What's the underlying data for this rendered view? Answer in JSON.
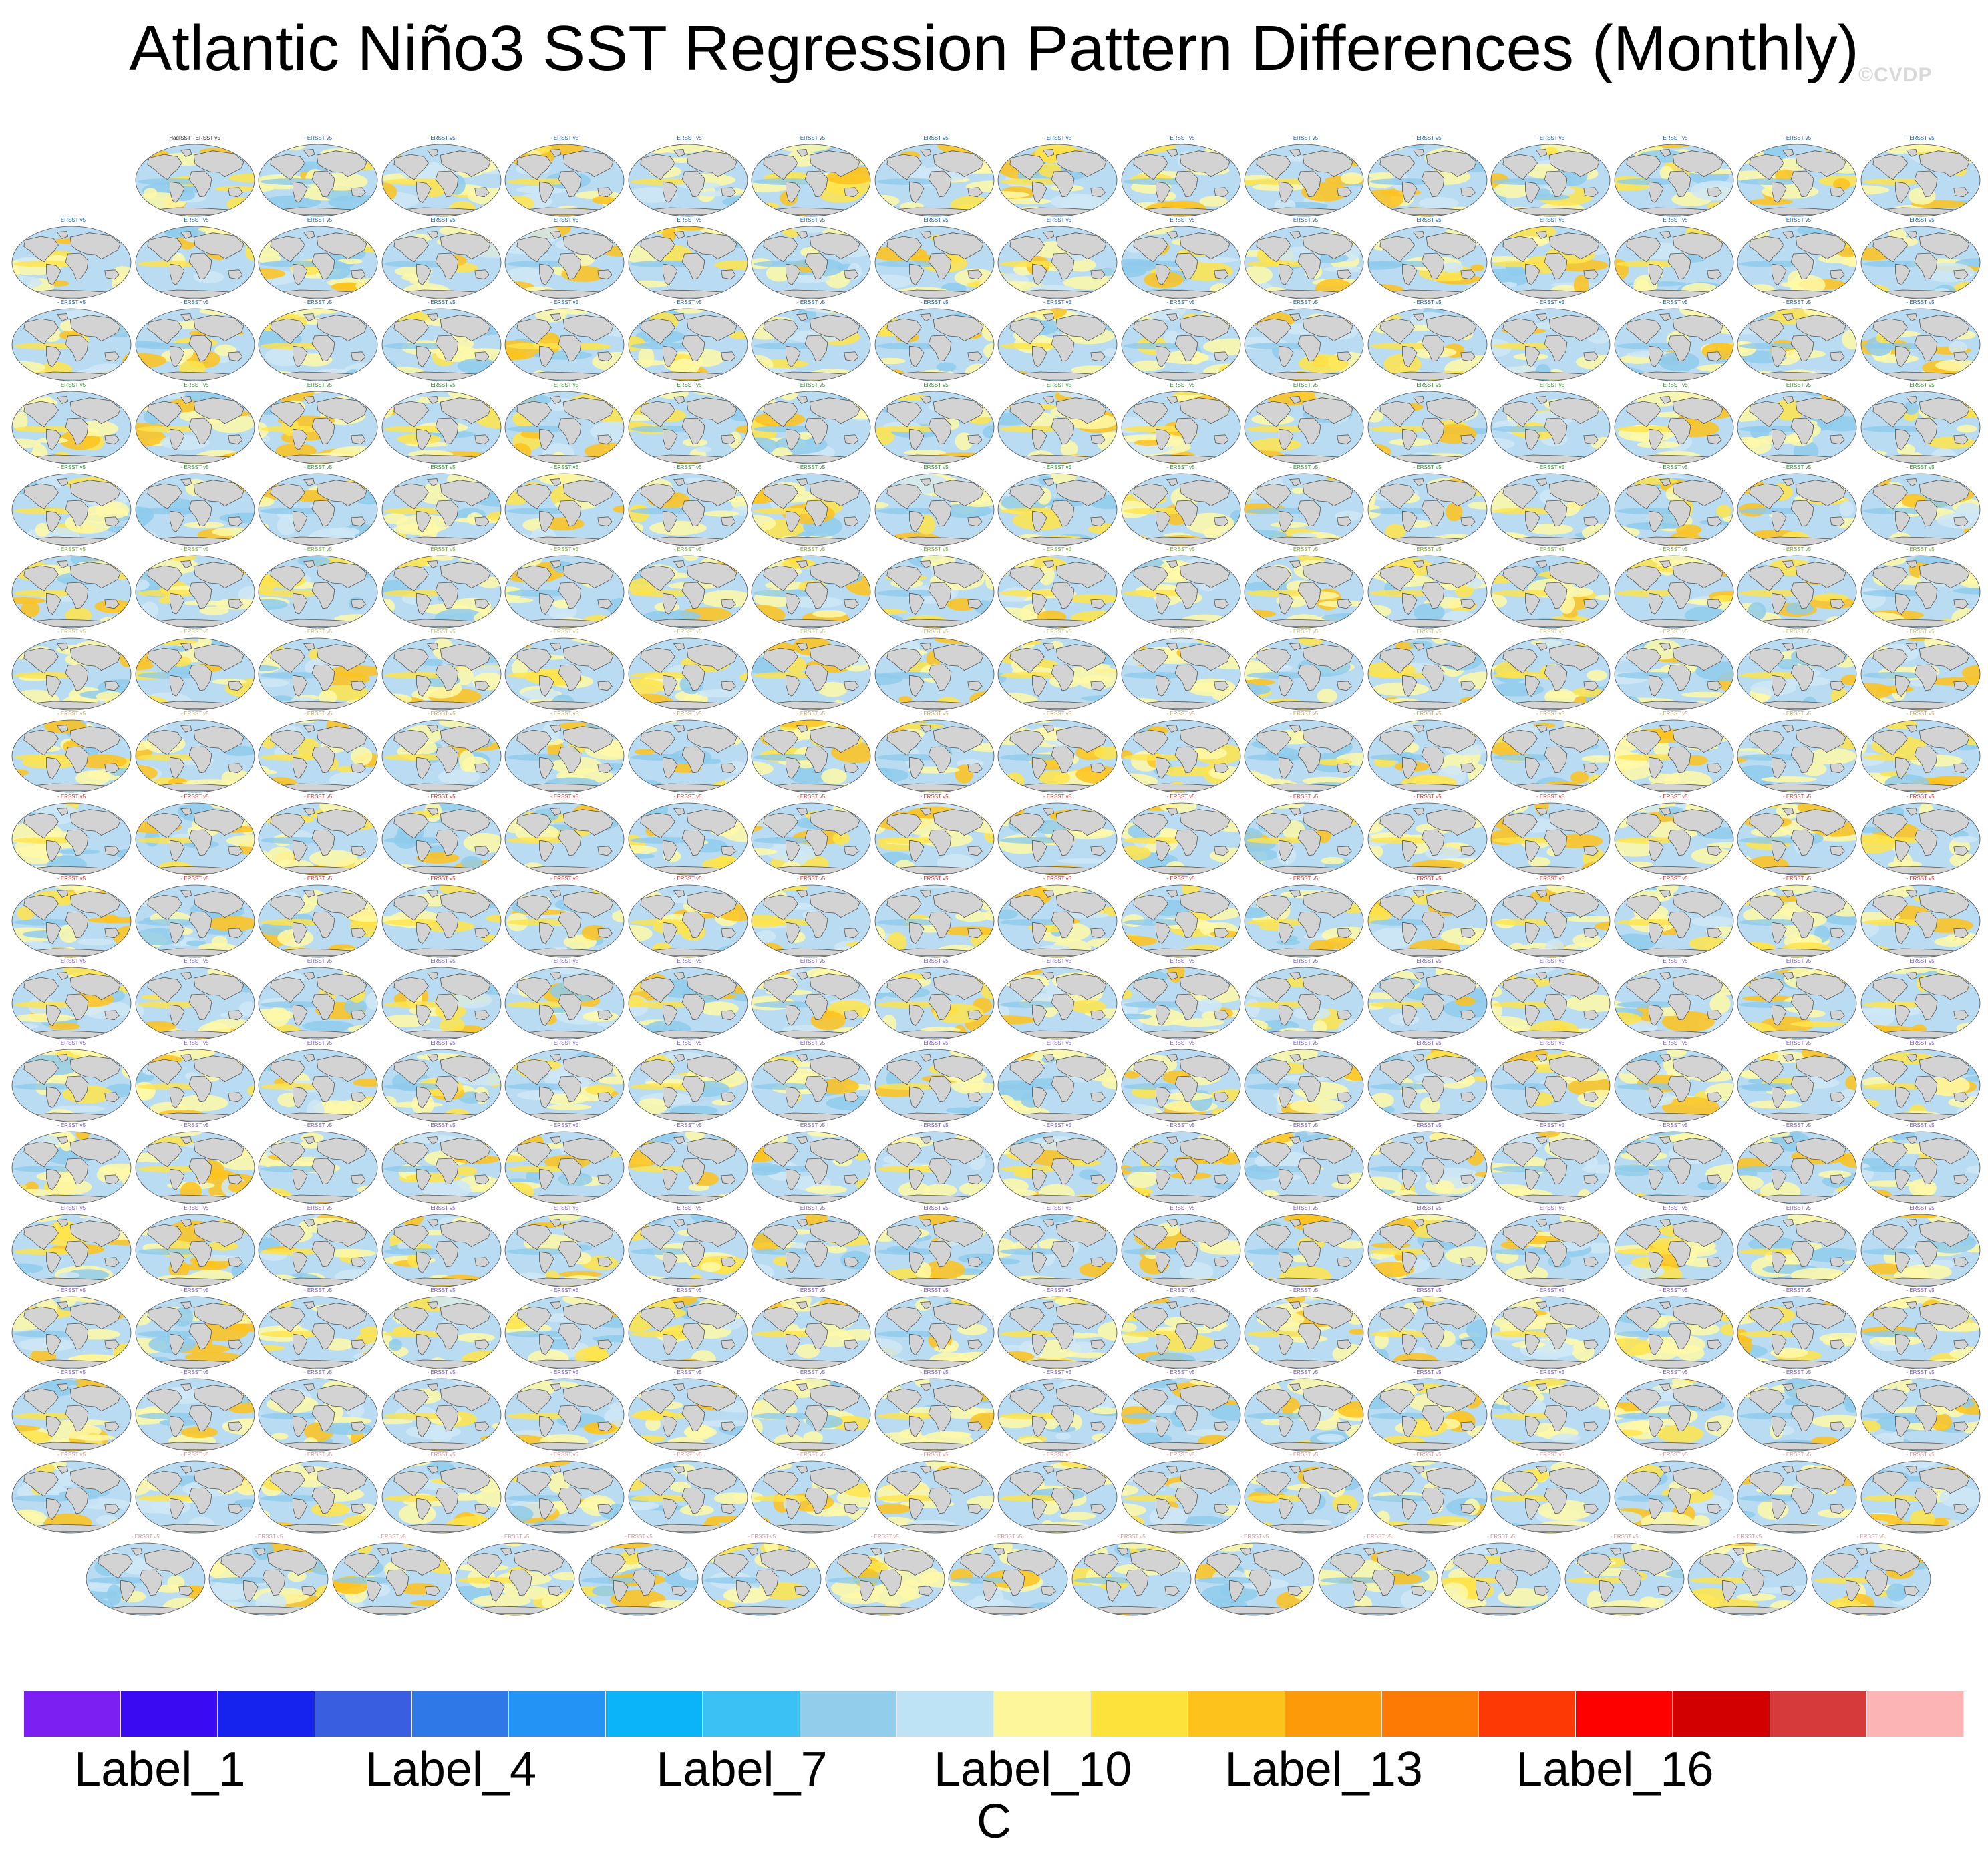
{
  "title": "Atlantic Niño3 SST Regression Pattern Differences (Monthly)",
  "watermark": "©CVDP",
  "panels": {
    "first_label": "HadISST - ERSST v5",
    "label_suffix": " - ERSST v5",
    "row_counts": [
      15,
      16,
      16,
      16,
      16,
      16,
      16,
      16,
      16,
      16,
      16,
      16,
      16,
      16,
      16,
      16,
      16,
      15
    ],
    "map_colors": {
      "ocean_base": "#b9dcf2",
      "ocean_light": "#cfe8f7",
      "warm_light": "#fff9a8",
      "warm": "#ffe44a",
      "warm_strong": "#fdc21c",
      "cool": "#8fcbec",
      "land": "#d3d3d3",
      "coast": "#555555"
    },
    "label_colors": [
      "#1a5ea8",
      "#1a5ea8",
      "#1a5ea8",
      "#3a8f3a",
      "#3a8f3a",
      "#7aa83a",
      "#c2c28a",
      "#c2a86a",
      "#c23a3a",
      "#c23a3a",
      "#7a5ac8",
      "#7a5ac8",
      "#7a5ac8",
      "#7a5ac8",
      "#7a5ac8",
      "#7a5ac8",
      "#d49a9a",
      "#d49a9a"
    ]
  },
  "colorbar": {
    "colors": [
      "#7b1ff2",
      "#3a0af2",
      "#1623ee",
      "#3a5ee0",
      "#2f78e8",
      "#2394f5",
      "#0bb4f8",
      "#3cc1f5",
      "#92ceeb",
      "#bde3f5",
      "#fdf69b",
      "#fde23c",
      "#fdc21b",
      "#fd9a0a",
      "#fd7a05",
      "#fd3a05",
      "#fd0000",
      "#d20000",
      "#d63a3a",
      "#fdb4b4"
    ],
    "labels": [
      {
        "text": "Label_1",
        "index": 2
      },
      {
        "text": "Label_4",
        "index": 5
      },
      {
        "text": "Label_7",
        "index": 8
      },
      {
        "text": "Label_10",
        "index": 11
      },
      {
        "text": "Label_13",
        "index": 14
      },
      {
        "text": "Label_16",
        "index": 17
      }
    ],
    "units": "C"
  }
}
